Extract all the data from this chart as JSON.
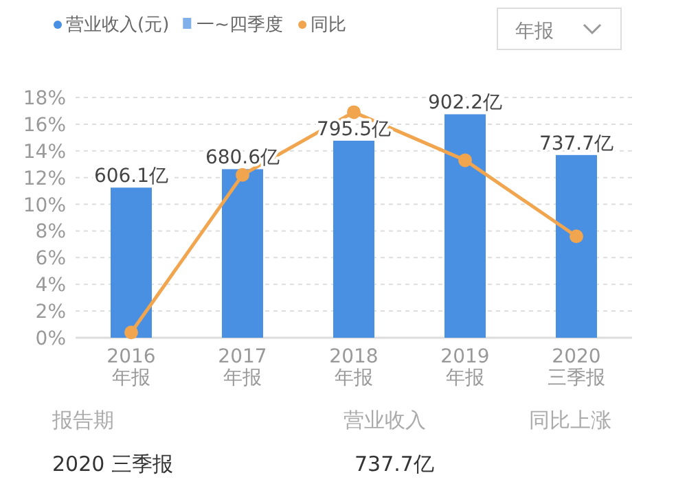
{
  "chart_data": {
    "type": "bar",
    "categories": [
      "2016\n年报",
      "2017\n年报",
      "2018\n年报",
      "2019\n年报",
      "2020\n三季报"
    ],
    "series": [
      {
        "name": "营业收入(元)",
        "axis": "y2",
        "color": "#4a90e2",
        "values": [
          606.1,
          680.6,
          795.5,
          902.2,
          737.7
        ],
        "value_labels": [
          "606.1亿",
          "680.6亿",
          "795.5亿",
          "902.2亿",
          "737.7亿"
        ]
      },
      {
        "name": "同比",
        "type": "line",
        "color": "#f0a54e",
        "values": [
          0.4,
          12.2,
          16.9,
          13.3,
          7.6
        ]
      }
    ],
    "ylim": [
      0,
      18
    ],
    "yticks": [
      {
        "value": 0,
        "label": "0%"
      },
      {
        "value": 2,
        "label": "2%"
      },
      {
        "value": 4,
        "label": "4%"
      },
      {
        "value": 6,
        "label": "6%"
      },
      {
        "value": 8,
        "label": "8%"
      },
      {
        "value": 10,
        "label": "10%"
      },
      {
        "value": 12,
        "label": "12%"
      },
      {
        "value": 14,
        "label": "14%"
      },
      {
        "value": 16,
        "label": "16%"
      },
      {
        "value": 18,
        "label": "18%"
      }
    ],
    "y2lim": [
      0,
      970
    ],
    "tick_labels": "xy",
    "grid": "y",
    "marker": "circle",
    "line_style": "solid",
    "legend": "top left",
    "annotations": [
      "一~四季度",
      "年报",
      "报告期",
      "营业收入",
      "同比上涨",
      "2020 三季报",
      "737.7亿"
    ]
  }
}
